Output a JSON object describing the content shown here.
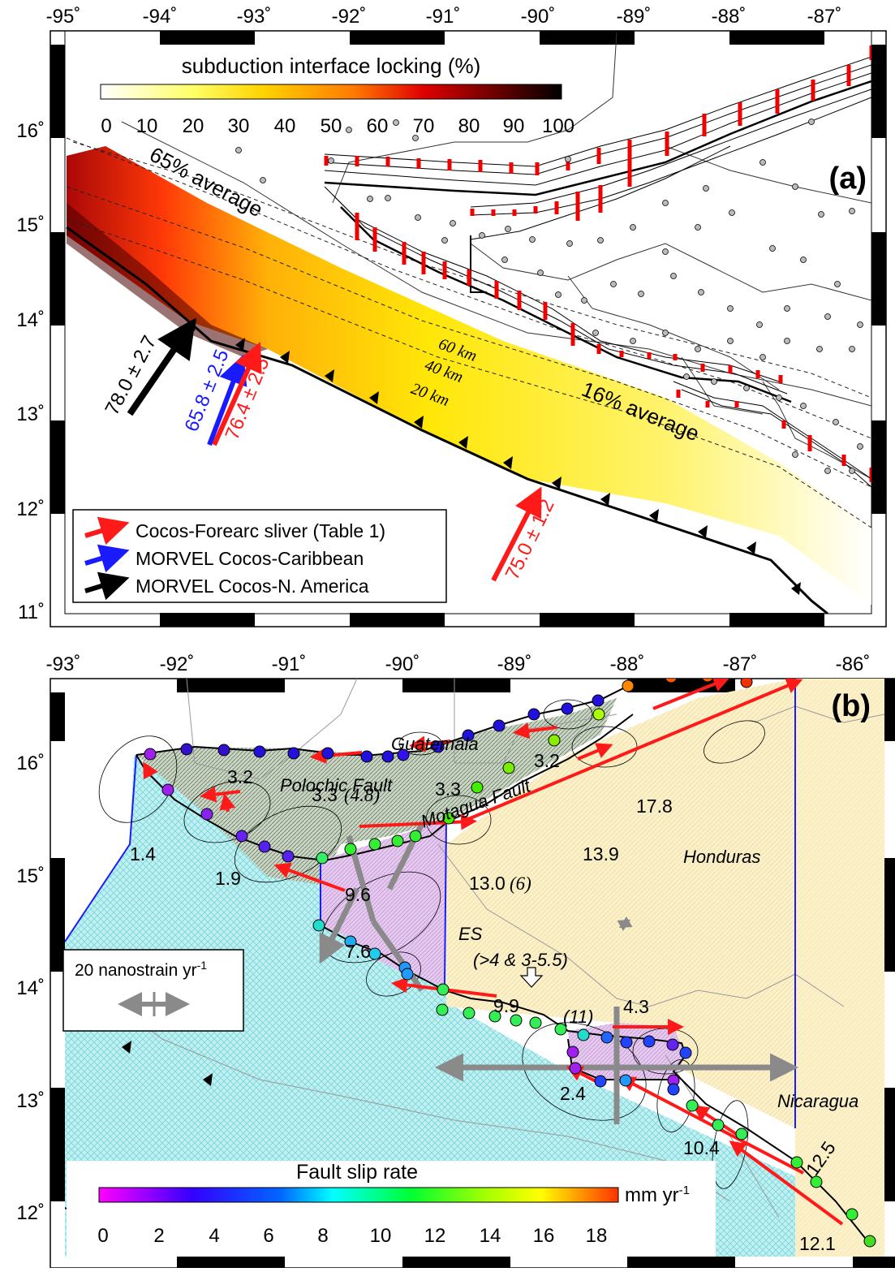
{
  "panel_a": {
    "label": "(a)",
    "top_ticks": [
      "-95˚",
      "-94˚",
      "-93˚",
      "-92˚",
      "-91˚",
      "-90˚",
      "-89˚",
      "-88˚",
      "-87˚"
    ],
    "left_ticks": [
      "16˚",
      "15˚",
      "14˚",
      "13˚",
      "12˚",
      "11˚"
    ],
    "colorbar": {
      "title": "subduction interface locking (%)",
      "ticks": [
        "0",
        "10",
        "20",
        "30",
        "40",
        "50",
        "60",
        "70",
        "80",
        "90",
        "100"
      ]
    },
    "annotations": {
      "avg65": "65% average",
      "avg16": "16% average",
      "km60": "60 km",
      "km40": "40 km",
      "km20": "20 km"
    },
    "vectors": {
      "black": "78.0 ± 2.7",
      "blue": "65.8 ± 2.5",
      "red1": "76.4 ± 2.5",
      "red2": "75.0 ± 1.2"
    },
    "legend": [
      {
        "label": "Cocos-Forearc sliver (Table 1)",
        "color": "#ff1a1a"
      },
      {
        "label": "MORVEL Cocos-Caribbean",
        "color": "#1a1aff"
      },
      {
        "label": "MORVEL Cocos-N. America",
        "color": "#000000"
      }
    ]
  },
  "panel_b": {
    "label": "(b)",
    "top_ticks": [
      "-93˚",
      "-92˚",
      "-91˚",
      "-90˚",
      "-89˚",
      "-88˚",
      "-87˚",
      "-86˚"
    ],
    "left_ticks": [
      "16˚",
      "15˚",
      "14˚",
      "13˚",
      "12˚"
    ],
    "places": {
      "guatemala": "Guatemala",
      "honduras": "Honduras",
      "nicaragua": "Nicaragua",
      "es": "ES",
      "polochic": "Polochic Fault",
      "motagua": "Motagua Fault",
      "es_rates": "(>4 & 3-5.5)",
      "eleven": "(11)"
    },
    "rates": {
      "r32a": "3.2",
      "r33a": "3.3",
      "r48": "(4.8)",
      "r33b": "3.3",
      "r32b": "3.2",
      "r178": "17.8",
      "r139": "13.9",
      "r14": "1.4",
      "r19": "1.9",
      "r96": "9.6",
      "r130": "13.0",
      "r6": "(6)",
      "r76": "7.6",
      "r99": "9.9",
      "r43": "4.3",
      "r24": "2.4",
      "r104": "10.4",
      "r125": "12.5",
      "r121": "12.1"
    },
    "strain_legend": {
      "label": "20 nanostrain yr",
      "sup": "-1"
    },
    "colorbar": {
      "title": "Fault slip rate",
      "ticks": [
        "0",
        "2",
        "4",
        "6",
        "8",
        "10",
        "12",
        "14",
        "16",
        "18"
      ],
      "unit": "mm yr",
      "unit_sup": "-1"
    }
  }
}
